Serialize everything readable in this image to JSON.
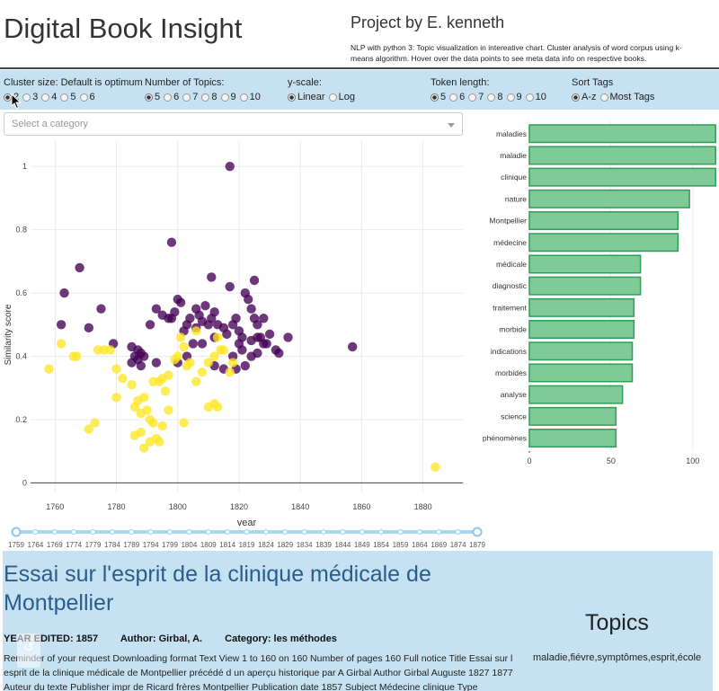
{
  "header": {
    "title": "Digital Book Insight",
    "project_title": "Project by E. kenneth",
    "project_desc": "NLP with python 3: Topic visualization in intereative chart. Cluster analysis of word corpus using k-means algorithm. Hover over the data points to see meta data info on respective books."
  },
  "controls": {
    "cluster": {
      "label": "Cluster size: Default is optimum",
      "options": [
        "2",
        "3",
        "4",
        "5",
        "6"
      ],
      "selected": "2"
    },
    "topics": {
      "label": "Number of Topics:",
      "options": [
        "5",
        "6",
        "7",
        "8",
        "9",
        "10"
      ],
      "selected": "5"
    },
    "yscale": {
      "label": "y-scale:",
      "options": [
        "Linear",
        "Log"
      ],
      "selected": "Linear"
    },
    "token": {
      "label": "Token length:",
      "options": [
        "5",
        "6",
        "7",
        "8",
        "9",
        "10"
      ],
      "selected": "5"
    },
    "sort": {
      "label": "Sort Tags",
      "options": [
        "A-z",
        "Most Tags"
      ],
      "selected": "A-z"
    }
  },
  "category_select": {
    "placeholder": "Select a category"
  },
  "colors": {
    "cluster_a": "#440154",
    "cluster_b": "#fde725",
    "bar_fill": "#7fca97",
    "bar_stroke": "#2f9e56",
    "panel": "#c6e1f1",
    "title_blue": "#2a5d8f"
  },
  "chart_data": [
    {
      "type": "scatter",
      "xlabel": "year",
      "ylabel": "Similarity score",
      "xlim": [
        1752,
        1893
      ],
      "ylim": [
        -0.03,
        1.08
      ],
      "xticks": [
        1760,
        1780,
        1800,
        1820,
        1840,
        1860,
        1880
      ],
      "yticks": [
        0,
        0.2,
        0.4,
        0.6,
        0.8,
        1
      ],
      "grid": true,
      "series": [
        {
          "cluster": "a",
          "points": [
            [
              1817,
              1
            ],
            [
              1798,
              0.76
            ],
            [
              1768,
              0.68
            ],
            [
              1763,
              0.6
            ],
            [
              1811,
              0.65
            ],
            [
              1825,
              0.64
            ],
            [
              1762,
              0.5
            ],
            [
              1771,
              0.49
            ],
            [
              1775,
              0.55
            ],
            [
              1779,
              0.44
            ],
            [
              1785,
              0.43
            ],
            [
              1787,
              0.42
            ],
            [
              1786,
              0.4
            ],
            [
              1788,
              0.41
            ],
            [
              1789,
              0.4
            ],
            [
              1787,
              0.39
            ],
            [
              1785,
              0.38
            ],
            [
              1788,
              0.37
            ],
            [
              1791,
              0.5
            ],
            [
              1793,
              0.55
            ],
            [
              1795,
              0.53
            ],
            [
              1797,
              0.52
            ],
            [
              1799,
              0.54
            ],
            [
              1800,
              0.58
            ],
            [
              1801,
              0.57
            ],
            [
              1803,
              0.5
            ],
            [
              1804,
              0.52
            ],
            [
              1806,
              0.55
            ],
            [
              1807,
              0.53
            ],
            [
              1808,
              0.51
            ],
            [
              1809,
              0.56
            ],
            [
              1810,
              0.5
            ],
            [
              1811,
              0.52
            ],
            [
              1812,
              0.54
            ],
            [
              1813,
              0.5
            ],
            [
              1815,
              0.49
            ],
            [
              1816,
              0.47
            ],
            [
              1817,
              0.62
            ],
            [
              1818,
              0.5
            ],
            [
              1819,
              0.52
            ],
            [
              1820,
              0.48
            ],
            [
              1821,
              0.46
            ],
            [
              1822,
              0.6
            ],
            [
              1823,
              0.58
            ],
            [
              1824,
              0.55
            ],
            [
              1825,
              0.52
            ],
            [
              1826,
              0.5
            ],
            [
              1827,
              0.46
            ],
            [
              1828,
              0.52
            ],
            [
              1829,
              0.44
            ],
            [
              1830,
              0.47
            ],
            [
              1832,
              0.42
            ],
            [
              1833,
              0.41
            ],
            [
              1836,
              0.46
            ],
            [
              1857,
              0.43
            ],
            [
              1800,
              0.38
            ],
            [
              1803,
              0.4
            ],
            [
              1808,
              0.44
            ],
            [
              1812,
              0.46
            ],
            [
              1815,
              0.36
            ],
            [
              1818,
              0.4
            ],
            [
              1820,
              0.44
            ],
            [
              1822,
              0.37
            ],
            [
              1824,
              0.45
            ],
            [
              1826,
              0.41
            ],
            [
              1812,
              0.37
            ],
            [
              1821,
              0.42
            ],
            [
              1824,
              0.4
            ],
            [
              1793,
              0.38
            ],
            [
              1805,
              0.44
            ],
            [
              1819,
              0.36
            ],
            [
              1828,
              0.44
            ],
            [
              1798,
              0.52
            ],
            [
              1802,
              0.48
            ],
            [
              1806,
              0.49
            ],
            [
              1826,
              0.46
            ]
          ]
        },
        {
          "cluster": "b",
          "points": [
            [
              1758,
              0.36
            ],
            [
              1762,
              0.44
            ],
            [
              1766,
              0.4
            ],
            [
              1767,
              0.4
            ],
            [
              1774,
              0.42
            ],
            [
              1776,
              0.42
            ],
            [
              1780,
              0.27
            ],
            [
              1782,
              0.33
            ],
            [
              1785,
              0.31
            ],
            [
              1786,
              0.24
            ],
            [
              1787,
              0.26
            ],
            [
              1788,
              0.22
            ],
            [
              1789,
              0.27
            ],
            [
              1790,
              0.23
            ],
            [
              1791,
              0.2
            ],
            [
              1792,
              0.19
            ],
            [
              1793,
              0.14
            ],
            [
              1794,
              0.13
            ],
            [
              1795,
              0.18
            ],
            [
              1786,
              0.15
            ],
            [
              1788,
              0.16
            ],
            [
              1789,
              0.11
            ],
            [
              1792,
              0.32
            ],
            [
              1794,
              0.32
            ],
            [
              1795,
              0.33
            ],
            [
              1797,
              0.34
            ],
            [
              1799,
              0.39
            ],
            [
              1800,
              0.4
            ],
            [
              1801,
              0.46
            ],
            [
              1802,
              0.43
            ],
            [
              1803,
              0.37
            ],
            [
              1804,
              0.38
            ],
            [
              1806,
              0.48
            ],
            [
              1808,
              0.35
            ],
            [
              1810,
              0.38
            ],
            [
              1812,
              0.4
            ],
            [
              1813,
              0.46
            ],
            [
              1815,
              0.42
            ],
            [
              1817,
              0.35
            ],
            [
              1818,
              0.38
            ],
            [
              1810,
              0.24
            ],
            [
              1812,
              0.25
            ],
            [
              1813,
              0.24
            ],
            [
              1780,
              0.36
            ],
            [
              1778,
              0.42
            ],
            [
              1771,
              0.17
            ],
            [
              1773,
              0.19
            ],
            [
              1791,
              0.13
            ],
            [
              1797,
              0.23
            ],
            [
              1802,
              0.19
            ],
            [
              1814,
              0.42
            ],
            [
              1806,
              0.32
            ],
            [
              1884,
              0.05
            ],
            [
              1796,
              0.29
            ]
          ]
        }
      ]
    },
    {
      "type": "bar",
      "orientation": "horizontal",
      "categories": [
        "maladies",
        "maladie",
        "clinique",
        "nature",
        "Montpellier",
        "médecine",
        "médicale",
        "diagnostic",
        "traitement",
        "morbide",
        "indications",
        "morbides",
        "analyse",
        "science",
        "phénomènes"
      ],
      "values": [
        114,
        114,
        114,
        98,
        91,
        91,
        68,
        68,
        64,
        64,
        63,
        63,
        57,
        53,
        53
      ],
      "xlim": [
        0,
        115
      ],
      "xticks": [
        0,
        50,
        100
      ],
      "legend": "none"
    }
  ],
  "slider": {
    "marks": [
      "1759",
      "1764",
      "1769",
      "1774",
      "1779",
      "1784",
      "1789",
      "1794",
      "1799",
      "1804",
      "1809",
      "1814",
      "1819",
      "1824",
      "1829",
      "1834",
      "1839",
      "1844",
      "1849",
      "1854",
      "1859",
      "1864",
      "1869",
      "1874",
      "1879"
    ]
  },
  "book": {
    "title": "Essai sur l'esprit de la clinique médicale de Montpellier",
    "year_label": "YEAR EDITED: 1857",
    "author_label": "Author: Girbal, A.",
    "category_label": "Category: les méthodes",
    "description": "Reminder of your request Downloading format Text View 1 to 160 on 160 Number of pages 160 Full notice Title Essai sur l esprit de la clinique médicale de Montpellier précédé d un aperçu historique par A Girbal Author Girbal Auguste 1827 1877 Auteur du texte Publisher impr de Ricard frères Montpellier Publication date 1857 Subject Médecine clinique Type"
  },
  "topics": {
    "heading": "Topics",
    "list": "maladie,fiévre,symptômes,esprit,école"
  }
}
